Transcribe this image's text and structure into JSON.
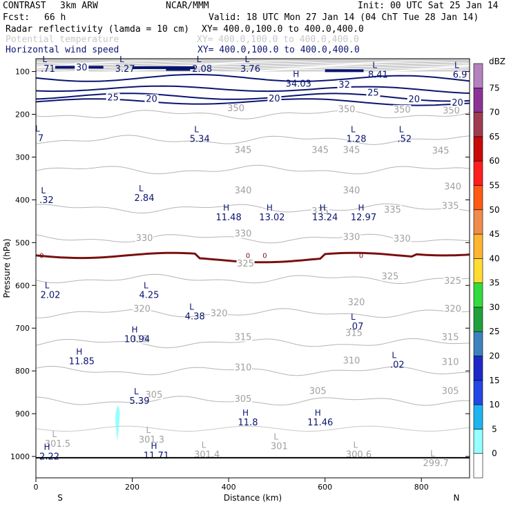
{
  "header": {
    "project": "CONTRAST",
    "model": "3km ARW",
    "center": "NCAR/MMM",
    "init": "Init: 00 UTC Sat 25 Jan 14",
    "fcst_label": "Fcst:",
    "fcst_value": "66 h",
    "valid": "Valid: 18 UTC Mon 27 Jan 14 (04 ChT Tue 28 Jan 14)",
    "fields": [
      {
        "name": "Radar reflectivity (lamda = 10 cm)",
        "xy": "XY= 400.0,100.0 to 400.0,400.0",
        "color": "#000000"
      },
      {
        "name": "Potential temperature",
        "xy": "XY= 400.0,100.0 to 400.0,400.0",
        "color": "#c8c8c8"
      },
      {
        "name": "Horizontal wind speed",
        "xy": "XY= 400.0,100.0 to 400.0,400.0",
        "color": "#0a1470"
      }
    ]
  },
  "chart_data": {
    "type": "cross-section contour",
    "xlabel": "Distance (km)",
    "ylabel": "Pressure (hPa)",
    "xlim": [
      0,
      900
    ],
    "ylim": [
      1050,
      70
    ],
    "x_ticks": [
      0,
      200,
      400,
      600,
      800
    ],
    "y_ticks": [
      100,
      200,
      300,
      400,
      500,
      600,
      700,
      800,
      900,
      1000
    ],
    "end_labels": {
      "left": "S",
      "right": "N"
    },
    "colorbar": {
      "unit": "dBZ",
      "levels": [
        "0",
        "5",
        "10",
        "15",
        "20",
        "25",
        "30",
        "35",
        "40",
        "45",
        "50",
        "55",
        "60",
        "65",
        "70",
        "75"
      ],
      "colors": [
        "#ffffff",
        "#96ffff",
        "#1eb4f0",
        "#2346e6",
        "#1e28c8",
        "#3c82be",
        "#20a03c",
        "#32dc3c",
        "#ffdc32",
        "#ffb432",
        "#f08c4b",
        "#ff5a14",
        "#ff1e1e",
        "#c80a0a",
        "#a03c50",
        "#8c3296",
        "#b482be"
      ]
    },
    "theta_contours": [
      {
        "value": "350",
        "pressure": 200
      },
      {
        "value": "345",
        "pressure": 260
      },
      {
        "value": "340",
        "pressure": 330
      },
      {
        "value": "335",
        "pressure": 420
      },
      {
        "value": "330",
        "pressure": 490
      },
      {
        "value": "325",
        "pressure": 585
      },
      {
        "value": "320",
        "pressure": 665
      },
      {
        "value": "315",
        "pressure": 735
      },
      {
        "value": "310",
        "pressure": 800
      },
      {
        "value": "305",
        "pressure": 870
      }
    ],
    "theta_labels": [
      {
        "text": "350",
        "x": 415,
        "p": 185
      },
      {
        "text": "350",
        "x": 645,
        "p": 187
      },
      {
        "text": "350",
        "x": 862,
        "p": 190
      },
      {
        "text": "350",
        "x": 760,
        "p": 188
      },
      {
        "text": "345",
        "x": 430,
        "p": 282
      },
      {
        "text": "345",
        "x": 590,
        "p": 282
      },
      {
        "text": "345",
        "x": 655,
        "p": 282
      },
      {
        "text": "345",
        "x": 840,
        "p": 284
      },
      {
        "text": "340",
        "x": 430,
        "p": 377
      },
      {
        "text": "340",
        "x": 655,
        "p": 377
      },
      {
        "text": "340",
        "x": 865,
        "p": 368
      },
      {
        "text": "335",
        "x": 590,
        "p": 425
      },
      {
        "text": "335",
        "x": 740,
        "p": 422
      },
      {
        "text": "335",
        "x": 860,
        "p": 413
      },
      {
        "text": "330",
        "x": 225,
        "p": 488
      },
      {
        "text": "330",
        "x": 430,
        "p": 478
      },
      {
        "text": "330",
        "x": 655,
        "p": 486
      },
      {
        "text": "330",
        "x": 760,
        "p": 490
      },
      {
        "text": "325",
        "x": 435,
        "p": 548
      },
      {
        "text": "325",
        "x": 735,
        "p": 578
      },
      {
        "text": "325",
        "x": 865,
        "p": 588
      },
      {
        "text": "320",
        "x": 220,
        "p": 654
      },
      {
        "text": "320",
        "x": 380,
        "p": 664
      },
      {
        "text": "320",
        "x": 665,
        "p": 638
      },
      {
        "text": "320",
        "x": 865,
        "p": 654
      },
      {
        "text": "315",
        "x": 215,
        "p": 725
      },
      {
        "text": "315",
        "x": 430,
        "p": 720
      },
      {
        "text": "315",
        "x": 660,
        "p": 710
      },
      {
        "text": "315",
        "x": 860,
        "p": 720
      },
      {
        "text": "310",
        "x": 430,
        "p": 791
      },
      {
        "text": "310",
        "x": 655,
        "p": 775
      },
      {
        "text": "310",
        "x": 860,
        "p": 778
      },
      {
        "text": "305",
        "x": 245,
        "p": 855
      },
      {
        "text": "305",
        "x": 430,
        "p": 864
      },
      {
        "text": "305",
        "x": 585,
        "p": 846
      },
      {
        "text": "305",
        "x": 860,
        "p": 846
      }
    ],
    "wind_labels": [
      {
        "text": "30",
        "x": 95,
        "p": 89
      },
      {
        "text": "25",
        "x": 160,
        "p": 160
      },
      {
        "text": "20",
        "x": 240,
        "p": 163
      },
      {
        "text": "20",
        "x": 495,
        "p": 162
      },
      {
        "text": "32",
        "x": 640,
        "p": 130
      },
      {
        "text": "25",
        "x": 700,
        "p": 148
      },
      {
        "text": "20",
        "x": 785,
        "p": 164
      },
      {
        "text": "20",
        "x": 875,
        "p": 172
      }
    ],
    "extrema": [
      {
        "type": "L",
        "value": ".71",
        "x": 25,
        "p": 78
      },
      {
        "type": "L",
        "value": "3.27",
        "x": 185,
        "p": 78
      },
      {
        "type": "L",
        "value": "2.08",
        "x": 345,
        "p": 78
      },
      {
        "type": "L",
        "value": "3.76",
        "x": 445,
        "p": 78
      },
      {
        "type": "L",
        "value": "8.41",
        "x": 710,
        "p": 92
      },
      {
        "type": "L",
        "value": "6.9",
        "x": 880,
        "p": 92
      },
      {
        "type": "H",
        "value": "34.03",
        "x": 545,
        "p": 113
      },
      {
        "type": "L",
        "value": "7",
        "x": 10,
        "p": 240
      },
      {
        "type": "L",
        "value": "5.34",
        "x": 340,
        "p": 242
      },
      {
        "type": "L",
        "value": "1.28",
        "x": 665,
        "p": 242
      },
      {
        "type": "L",
        "value": ".52",
        "x": 765,
        "p": 242
      },
      {
        "type": "L",
        "value": ".32",
        "x": 22,
        "p": 385
      },
      {
        "type": "L",
        "value": "2.84",
        "x": 225,
        "p": 380
      },
      {
        "type": "H",
        "value": "11.48",
        "x": 400,
        "p": 425
      },
      {
        "type": "H",
        "value": "13.02",
        "x": 490,
        "p": 425
      },
      {
        "type": "H",
        "value": "13.24",
        "x": 600,
        "p": 425
      },
      {
        "type": "H",
        "value": "12.97",
        "x": 680,
        "p": 425
      },
      {
        "type": "L",
        "value": "2.02",
        "x": 30,
        "p": 607
      },
      {
        "type": "L",
        "value": "4.25",
        "x": 235,
        "p": 607
      },
      {
        "type": "L",
        "value": "4.38",
        "x": 330,
        "p": 657
      },
      {
        "type": "L",
        "value": ".07",
        "x": 665,
        "p": 680
      },
      {
        "type": "H",
        "value": "10.94",
        "x": 210,
        "p": 710
      },
      {
        "type": "H",
        "value": "11.85",
        "x": 95,
        "p": 762
      },
      {
        "type": "L",
        "value": ".02",
        "x": 750,
        "p": 770
      },
      {
        "type": "L",
        "value": "5.39",
        "x": 215,
        "p": 855
      },
      {
        "type": "H",
        "value": "11.8",
        "x": 440,
        "p": 905
      },
      {
        "type": "H",
        "value": "11.46",
        "x": 590,
        "p": 905
      },
      {
        "type": "L",
        "value": "301.5",
        "x": 45,
        "p": 955
      },
      {
        "type": "L",
        "value": "301.3",
        "x": 240,
        "p": 945
      },
      {
        "type": "L",
        "value": "301",
        "x": 505,
        "p": 960
      },
      {
        "type": "L",
        "value": "301.4",
        "x": 355,
        "p": 980
      },
      {
        "type": "L",
        "value": "300.6",
        "x": 670,
        "p": 980
      },
      {
        "type": "L",
        "value": "299.7",
        "x": 830,
        "p": 1000
      },
      {
        "type": "H",
        "value": "2.22",
        "x": 28,
        "p": 985
      },
      {
        "type": "H",
        "value": "11.71",
        "x": 250,
        "p": 982
      }
    ],
    "zero_line_labels": [
      {
        "text": "0",
        "x": 12
      },
      {
        "text": "0",
        "x": 440
      },
      {
        "text": "0",
        "x": 475
      },
      {
        "text": "0",
        "x": 675
      }
    ],
    "ground_pressure": 1003
  }
}
